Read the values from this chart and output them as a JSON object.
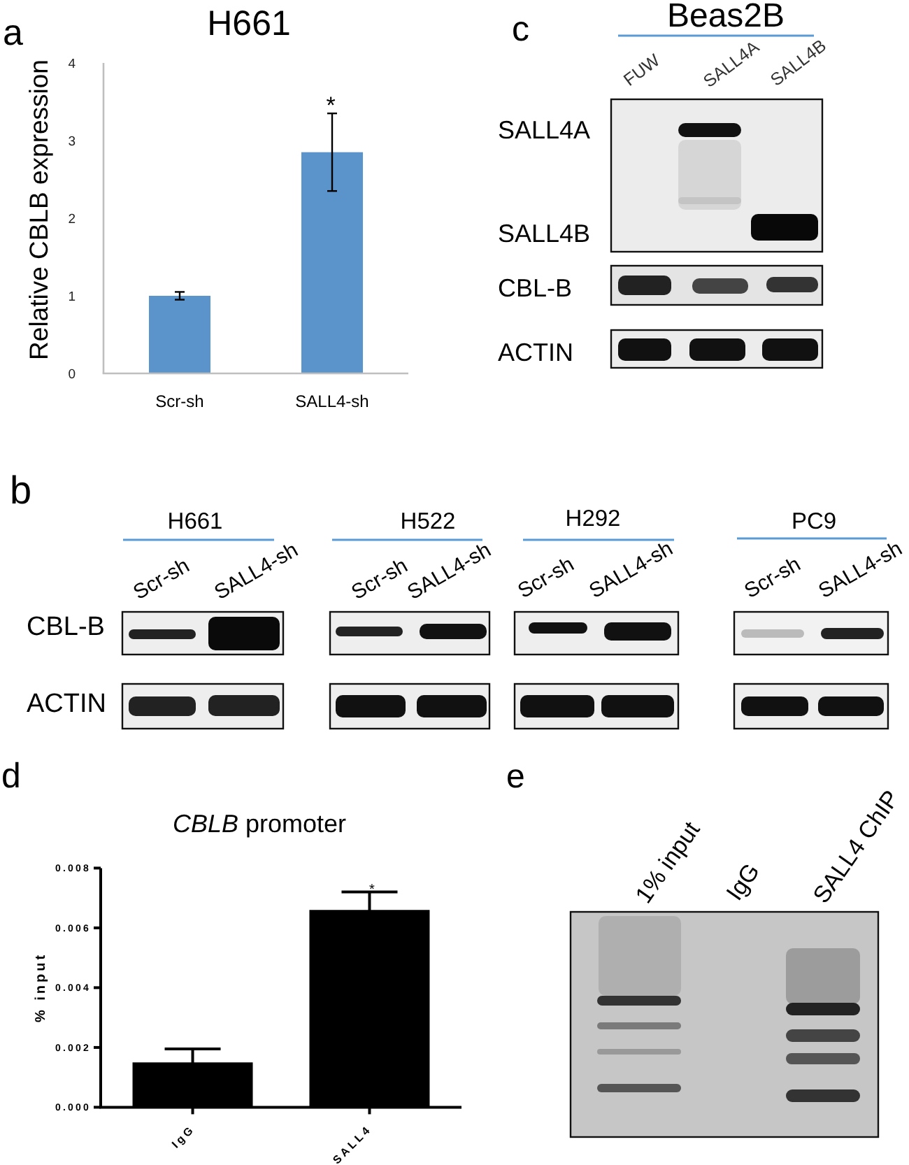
{
  "chart_data": [
    {
      "type": "bar",
      "title": "H661",
      "ylabel": "Relative CBLB expression",
      "categories": [
        "Scr-sh",
        "SALL4-sh"
      ],
      "values": [
        1.0,
        2.85
      ],
      "errors": [
        0.05,
        0.5
      ],
      "color": "#5b94cb",
      "ylim": [
        0,
        4
      ],
      "yticks": [
        0,
        1,
        2,
        3,
        4
      ],
      "annotations": [
        "a",
        "*"
      ]
    },
    {
      "type": "other",
      "title": "Beas2B",
      "annotations": [
        "c",
        "FUW",
        "SALL4A",
        "SALL4B",
        "SALL4A",
        "SALL4B",
        "CBL-B",
        "ACTIN"
      ]
    },
    {
      "type": "other",
      "annotations": [
        "b",
        "H661",
        "H522",
        "H292",
        "PC9",
        "Scr-sh",
        "SALL4-sh",
        "Scr-sh",
        "SALL4-sh",
        "Scr-sh",
        "SALL4-sh",
        "Scr-sh",
        "SALL4-sh",
        "CBL-B",
        "ACTIN"
      ]
    },
    {
      "type": "bar",
      "title": "CBLB promoter",
      "ylabel": "% input",
      "categories": [
        "IgG",
        "SALL4"
      ],
      "values": [
        0.0015,
        0.0066
      ],
      "errors": [
        0.00045,
        0.0006
      ],
      "color": "#000000",
      "ylim": [
        0,
        0.008
      ],
      "yticks": [
        {
          "value": 0,
          "label": "0.000"
        },
        {
          "value": 0.002,
          "label": "0.002"
        },
        {
          "value": 0.004,
          "label": "0.004"
        },
        {
          "value": 0.006,
          "label": "0.006"
        },
        {
          "value": 0.008,
          "label": "0.008"
        }
      ],
      "annotations": [
        "d",
        "*"
      ]
    },
    {
      "type": "other",
      "annotations": [
        "e",
        "1% input",
        "IgG",
        "SALL4 ChIP"
      ]
    }
  ]
}
